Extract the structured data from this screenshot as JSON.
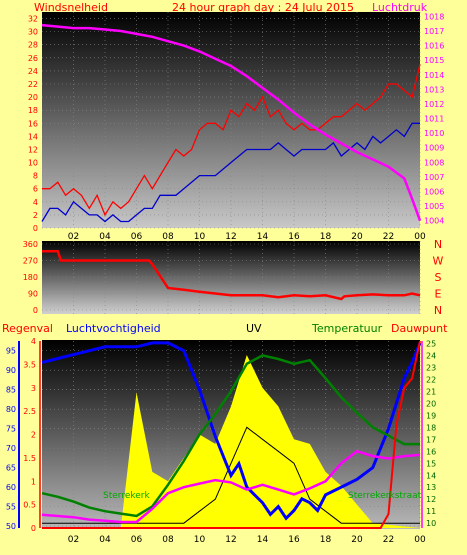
{
  "colors": {
    "background": "#FFFF99",
    "wind": "#FF0000",
    "wind_avg": "#0000CC",
    "pressure": "#FF00FF",
    "direction": "#FF0000",
    "rain": "#FF0000",
    "humidity": "#0000FF",
    "uv": "#FFFF00",
    "temperature": "#008000",
    "dewpoint": "#FF00FF",
    "solar": "#000000"
  },
  "chart_data": [
    {
      "type": "line",
      "title": "24 hour graph day : 24 Julu 2015",
      "left_label": "Windsnelheid",
      "right_label": "Luchtdruk",
      "x_tick_labels": [
        "02",
        "04",
        "06",
        "08",
        "10",
        "12",
        "14",
        "16",
        "18",
        "20",
        "22",
        "00"
      ],
      "y_left_ticks": [
        "0",
        "2",
        "4",
        "6",
        "8",
        "10",
        "12",
        "14",
        "16",
        "18",
        "20",
        "22",
        "24",
        "26",
        "28",
        "30",
        "32"
      ],
      "y_right_ticks": [
        "1004",
        "1005",
        "1006",
        "1007",
        "1008",
        "1009",
        "1010",
        "1011",
        "1012",
        "1013",
        "1014",
        "1015",
        "1016",
        "1017",
        "1018"
      ],
      "ylim_left": [
        0,
        33
      ],
      "ylim_right": [
        1003.5,
        1018.3
      ],
      "xlim": [
        0,
        24
      ],
      "series": [
        {
          "name": "Windsnelheid",
          "axis": "left",
          "x": [
            0,
            0.5,
            1,
            1.5,
            2,
            2.5,
            3,
            3.5,
            4,
            4.5,
            5,
            5.5,
            6,
            6.5,
            7,
            7.5,
            8,
            8.5,
            9,
            9.5,
            10,
            10.5,
            11,
            11.5,
            12,
            12.5,
            13,
            13.5,
            14,
            14.5,
            15,
            15.5,
            16,
            16.5,
            17,
            17.5,
            18,
            18.5,
            19,
            19.5,
            20,
            20.5,
            21,
            21.5,
            22,
            22.5,
            23,
            23.5,
            24
          ],
          "values": [
            6,
            6,
            7,
            5,
            6,
            5,
            3,
            5,
            2,
            4,
            3,
            4,
            6,
            8,
            6,
            8,
            10,
            12,
            11,
            12,
            15,
            16,
            16,
            15,
            18,
            17,
            19,
            18,
            20,
            17,
            18,
            16,
            15,
            16,
            15,
            15,
            16,
            17,
            17,
            18,
            19,
            18,
            19,
            20,
            22,
            22,
            21,
            20,
            25
          ]
        },
        {
          "name": "",
          "axis": "left",
          "x": [
            0,
            0.5,
            1,
            1.5,
            2,
            2.5,
            3,
            3.5,
            4,
            4.5,
            5,
            5.5,
            6,
            6.5,
            7,
            7.5,
            8,
            8.5,
            9,
            9.5,
            10,
            10.5,
            11,
            11.5,
            12,
            12.5,
            13,
            13.5,
            14,
            14.5,
            15,
            15.5,
            16,
            16.5,
            17,
            17.5,
            18,
            18.5,
            19,
            19.5,
            20,
            20.5,
            21,
            21.5,
            22,
            22.5,
            23,
            23.5,
            24
          ],
          "values": [
            1,
            3,
            3,
            2,
            4,
            3,
            2,
            2,
            1,
            2,
            1,
            1,
            2,
            3,
            3,
            5,
            5,
            5,
            6,
            7,
            8,
            8,
            8,
            9,
            10,
            11,
            12,
            12,
            12,
            12,
            13,
            12,
            11,
            12,
            12,
            12,
            12,
            13,
            11,
            12,
            13,
            12,
            14,
            13,
            14,
            15,
            14,
            16,
            16
          ]
        },
        {
          "name": "Luchtdruk",
          "axis": "right",
          "x": [
            0,
            1,
            2,
            3,
            4,
            5,
            6,
            7,
            8,
            9,
            10,
            11,
            12,
            13,
            14,
            15,
            16,
            17,
            18,
            19,
            20,
            21,
            22,
            23,
            23.5,
            24
          ],
          "values": [
            1017.4,
            1017.3,
            1017.2,
            1017.2,
            1017.1,
            1017.0,
            1016.8,
            1016.6,
            1016.3,
            1016.0,
            1015.6,
            1015.1,
            1014.6,
            1013.9,
            1013.1,
            1012.3,
            1011.4,
            1010.6,
            1009.9,
            1009.3,
            1008.7,
            1008.2,
            1007.7,
            1006.9,
            1005.5,
            1004.0
          ]
        }
      ]
    },
    {
      "type": "line",
      "right_labels": [
        "N",
        "W",
        "S",
        "E",
        "N"
      ],
      "y_ticks": [
        "360",
        "270",
        "180",
        "90",
        "0"
      ],
      "ylim": [
        0,
        360
      ],
      "xlim": [
        0,
        24
      ],
      "series": [
        {
          "name": "",
          "x": [
            0,
            1,
            1.2,
            3,
            4,
            5,
            6,
            6.8,
            7,
            8,
            9,
            10,
            11,
            12,
            13,
            14,
            15,
            16,
            17,
            18,
            19,
            19.2,
            20,
            21,
            22,
            23,
            23.5,
            24
          ],
          "values": [
            320,
            320,
            270,
            270,
            270,
            270,
            270,
            270,
            250,
            120,
            110,
            100,
            90,
            80,
            80,
            80,
            70,
            80,
            75,
            80,
            60,
            75,
            80,
            85,
            80,
            80,
            90,
            80
          ]
        }
      ]
    },
    {
      "type": "area",
      "labels": {
        "rain": "Regenval",
        "humidity": "Luchtvochtigheid",
        "uv": "UV",
        "temperature": "Temperatuur",
        "dewpoint": "Dauwpunt"
      },
      "y_left_ticks": [
        "50",
        "55",
        "60",
        "65",
        "70",
        "75",
        "80",
        "85",
        "90",
        "95"
      ],
      "y_rain_ticks": [
        "0",
        "0.5",
        "1",
        "1.5",
        "2",
        "2.5",
        "3",
        "3.5",
        "4"
      ],
      "y_right_ticks": [
        "10",
        "11",
        "12",
        "13",
        "14",
        "15",
        "16",
        "17",
        "18",
        "19",
        "20",
        "21",
        "22",
        "23",
        "24",
        "25"
      ],
      "annotations": [
        {
          "text": "Sterrekerk"
        },
        {
          "text": "Sterrekerkstraat"
        }
      ],
      "xlim": [
        0,
        24
      ],
      "series": [
        {
          "name": "Regenval",
          "axis": "rain",
          "x": [
            0,
            21,
            21.5,
            22,
            22.5,
            23,
            23.5,
            24
          ],
          "values": [
            0,
            0,
            0,
            0.3,
            2.2,
            3.0,
            3.2,
            4.0
          ]
        },
        {
          "name": "Luchtvochtigheid",
          "axis": "humidity",
          "x": [
            0,
            1,
            2,
            3,
            4,
            5,
            6,
            7,
            8,
            9,
            10,
            11,
            12,
            12.5,
            13,
            13.5,
            14,
            14.5,
            15,
            15.5,
            16,
            16.5,
            17,
            17.5,
            18,
            19,
            20,
            21,
            22,
            23,
            23.5,
            24
          ],
          "values": [
            92,
            93,
            94,
            95,
            96,
            96,
            96,
            97,
            97,
            95,
            85,
            73,
            63,
            66,
            60,
            58,
            56,
            53,
            55,
            52,
            54,
            57,
            56,
            54,
            58,
            60,
            62,
            65,
            75,
            88,
            92,
            97
          ]
        },
        {
          "name": "Temperatuur",
          "axis": "temp",
          "x": [
            0,
            1,
            2,
            3,
            4,
            5,
            6,
            7,
            8,
            9,
            10,
            11,
            12,
            13,
            14,
            15,
            16,
            17,
            18,
            19,
            20,
            21,
            22,
            23,
            24
          ],
          "values": [
            12.5,
            12.2,
            11.8,
            11.3,
            11.0,
            10.8,
            10.6,
            11.4,
            13.2,
            15.2,
            17.4,
            19.1,
            21.0,
            23.3,
            24.0,
            23.7,
            23.3,
            23.6,
            22.1,
            20.5,
            19.2,
            18.0,
            17.3,
            16.6,
            16.6
          ]
        },
        {
          "name": "Dauwpunt",
          "axis": "temp",
          "x": [
            0,
            1,
            2,
            3,
            4,
            5,
            6,
            7,
            8,
            9,
            10,
            11,
            12,
            13,
            14,
            15,
            16,
            17,
            18,
            19,
            20,
            21,
            22,
            23,
            24
          ],
          "values": [
            10.7,
            10.6,
            10.5,
            10.3,
            10.2,
            10.1,
            10.1,
            11.2,
            12.5,
            13.0,
            13.3,
            13.6,
            13.4,
            12.8,
            13.2,
            12.8,
            12.4,
            12.9,
            13.5,
            15.0,
            16.0,
            15.6,
            15.4,
            15.6,
            15.7
          ]
        },
        {
          "name": "",
          "axis": "temp",
          "x": [
            0,
            6,
            7,
            8,
            9,
            10,
            11,
            12,
            13,
            14,
            15,
            16,
            17,
            18,
            19,
            20,
            21,
            22,
            23,
            24
          ],
          "values": [
            10,
            10,
            10,
            10,
            10,
            11,
            12,
            15,
            18,
            17,
            16,
            15,
            12,
            11,
            10,
            10,
            10,
            10,
            10,
            10
          ]
        },
        {
          "name": "UV",
          "axis": "uv",
          "x": [
            0,
            5,
            6,
            7,
            8,
            9,
            10,
            11,
            12,
            13,
            14,
            15,
            16,
            17,
            18,
            19,
            20,
            21,
            24
          ],
          "values": [
            0,
            0,
            2.9,
            1.2,
            1.0,
            1.5,
            2.0,
            1.8,
            2.6,
            3.7,
            3.0,
            2.6,
            1.9,
            1.8,
            1.2,
            0.9,
            0.5,
            0.1,
            0
          ]
        }
      ]
    }
  ]
}
